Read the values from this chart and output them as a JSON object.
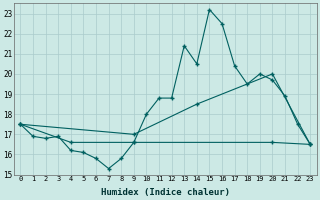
{
  "xlabel": "Humidex (Indice chaleur)",
  "bg_color": "#cce9e5",
  "grid_color": "#aacccc",
  "line_color": "#006060",
  "xlim": [
    -0.5,
    23.5
  ],
  "ylim": [
    15,
    23.5
  ],
  "yticks": [
    15,
    16,
    17,
    18,
    19,
    20,
    21,
    22,
    23
  ],
  "xticks": [
    0,
    1,
    2,
    3,
    4,
    5,
    6,
    7,
    8,
    9,
    10,
    11,
    12,
    13,
    14,
    15,
    16,
    17,
    18,
    19,
    20,
    21,
    22,
    23
  ],
  "main_x": [
    0,
    1,
    2,
    3,
    4,
    5,
    6,
    7,
    8,
    9,
    10,
    11,
    12,
    13,
    14,
    15,
    16,
    17,
    18,
    19,
    20,
    21,
    22,
    23
  ],
  "main_y": [
    17.5,
    16.9,
    16.8,
    16.9,
    16.2,
    16.1,
    15.8,
    15.3,
    15.8,
    16.6,
    18.0,
    18.8,
    18.8,
    21.4,
    20.5,
    23.2,
    22.5,
    20.4,
    19.5,
    20.0,
    19.7,
    18.9,
    17.5,
    16.5
  ],
  "upper_x": [
    0,
    9,
    14,
    20,
    23
  ],
  "upper_y": [
    17.5,
    17.0,
    18.5,
    20.0,
    16.5
  ],
  "lower_x": [
    0,
    4,
    9,
    20,
    23
  ],
  "lower_y": [
    17.5,
    16.6,
    16.6,
    16.6,
    16.5
  ]
}
